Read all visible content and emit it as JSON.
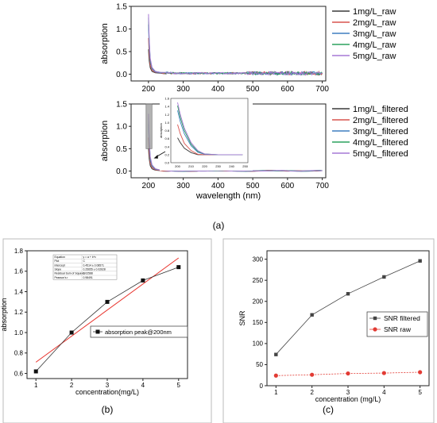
{
  "figure": {
    "label_a": "(a)",
    "label_b": "(b)",
    "label_c": "(c)"
  },
  "colors": {
    "series": [
      "#3a3a3a",
      "#d9534f",
      "#3f7fc0",
      "#2ca25f",
      "#a678d6"
    ],
    "fit_line": "#e8322b",
    "snr_filtered": "#444444",
    "snr_raw": "#e23b34",
    "inset_box": "#9a9a9a"
  },
  "chart_data": [
    {
      "id": "a_top",
      "type": "line",
      "xlabel": "",
      "ylabel": "absorption",
      "xlim": [
        150,
        710
      ],
      "ylim": [
        -0.15,
        1.5
      ],
      "xticks": [
        200,
        300,
        400,
        500,
        600,
        700
      ],
      "yticks": [
        0.0,
        0.5,
        1.0,
        1.5
      ],
      "legend_position": "top-right",
      "x": [
        200,
        202,
        205,
        210,
        220,
        235,
        250,
        280,
        320,
        400,
        480,
        560,
        640,
        700
      ],
      "series": [
        {
          "name": "1mg/L_raw",
          "values": [
            0.55,
            0.3,
            0.14,
            0.06,
            0.03,
            0.02,
            0.02,
            0.02,
            0.02,
            0.02,
            0.02,
            0.02,
            0.02,
            0.02
          ]
        },
        {
          "name": "2mg/L_raw",
          "values": [
            0.8,
            0.45,
            0.2,
            0.09,
            0.04,
            0.03,
            0.02,
            0.02,
            0.02,
            0.02,
            0.02,
            0.02,
            0.02,
            0.02
          ]
        },
        {
          "name": "3mg/L_raw",
          "values": [
            1.1,
            0.62,
            0.28,
            0.12,
            0.05,
            0.03,
            0.03,
            0.02,
            0.02,
            0.02,
            0.02,
            0.02,
            0.02,
            0.02
          ]
        },
        {
          "name": "4mg/L_raw",
          "values": [
            1.25,
            0.72,
            0.32,
            0.14,
            0.06,
            0.04,
            0.03,
            0.02,
            0.02,
            0.02,
            0.02,
            0.02,
            0.02,
            0.02
          ]
        },
        {
          "name": "5mg/L_raw",
          "values": [
            1.33,
            0.78,
            0.35,
            0.15,
            0.06,
            0.04,
            0.03,
            0.02,
            0.02,
            0.02,
            0.02,
            0.02,
            0.02,
            0.02
          ]
        }
      ]
    },
    {
      "id": "a_bottom",
      "type": "line",
      "xlabel": "wavelength (nm)",
      "ylabel": "absorption",
      "xlim": [
        150,
        710
      ],
      "ylim": [
        -0.15,
        1.5
      ],
      "xticks": [
        200,
        300,
        400,
        500,
        600,
        700
      ],
      "yticks": [
        0.0,
        0.5,
        1.0,
        1.5
      ],
      "legend_position": "right",
      "x": [
        200,
        202,
        205,
        210,
        220,
        235,
        250,
        280,
        320,
        400,
        480,
        560,
        640,
        700
      ],
      "series": [
        {
          "name": "1mg/L_filtered",
          "values": [
            0.5,
            0.28,
            0.12,
            0.05,
            0.02,
            0.01,
            0.0,
            0.0,
            0.0,
            0.01,
            0.0,
            0.01,
            0.0,
            0.01
          ]
        },
        {
          "name": "2mg/L_filtered",
          "values": [
            0.75,
            0.42,
            0.18,
            0.08,
            0.03,
            0.01,
            0.0,
            0.0,
            0.0,
            0.01,
            0.0,
            0.01,
            0.0,
            0.01
          ]
        },
        {
          "name": "3mg/L_filtered",
          "values": [
            1.05,
            0.6,
            0.25,
            0.11,
            0.04,
            0.02,
            0.01,
            0.0,
            0.0,
            0.01,
            0.0,
            0.01,
            0.0,
            0.01
          ]
        },
        {
          "name": "4mg/L_filtered",
          "values": [
            1.2,
            0.68,
            0.29,
            0.13,
            0.05,
            0.02,
            0.01,
            0.0,
            0.0,
            0.01,
            0.0,
            0.01,
            0.0,
            0.01
          ]
        },
        {
          "name": "5mg/L_filtered",
          "values": [
            1.28,
            0.74,
            0.32,
            0.14,
            0.05,
            0.02,
            0.01,
            0.0,
            0.0,
            0.01,
            0.0,
            0.01,
            0.0,
            0.01
          ]
        }
      ],
      "zoom_box": {
        "x": [
          193,
          210
        ],
        "y": [
          0.5,
          1.5
        ]
      },
      "inset": {
        "ylabel": "absorption",
        "xlim": [
          195,
          252
        ],
        "ylim": [
          0,
          1.6
        ],
        "xticks": [
          200,
          210,
          220,
          230,
          240,
          250
        ],
        "yticks": [
          0.0,
          0.2,
          0.4,
          0.6,
          0.8,
          1.0,
          1.2,
          1.4,
          1.6
        ],
        "x": [
          200,
          202,
          205,
          210,
          215,
          220,
          230,
          240,
          248
        ],
        "series": [
          {
            "values": [
              0.62,
              0.5,
              0.36,
              0.25,
              0.2,
              0.2,
              0.2,
              0.2,
              0.2
            ]
          },
          {
            "values": [
              0.95,
              0.72,
              0.48,
              0.3,
              0.21,
              0.2,
              0.2,
              0.2,
              0.2
            ]
          },
          {
            "values": [
              1.3,
              1.02,
              0.72,
              0.42,
              0.26,
              0.21,
              0.2,
              0.2,
              0.2
            ]
          },
          {
            "values": [
              1.42,
              1.12,
              0.8,
              0.46,
              0.28,
              0.22,
              0.2,
              0.2,
              0.2
            ]
          },
          {
            "values": [
              1.5,
              1.2,
              0.86,
              0.5,
              0.3,
              0.22,
              0.2,
              0.2,
              0.2
            ]
          }
        ]
      }
    },
    {
      "id": "b",
      "type": "scatter",
      "xlabel": "concentration(mg/L)",
      "ylabel": "absorption",
      "xlim": [
        0.75,
        5.25
      ],
      "ylim": [
        0.55,
        1.8
      ],
      "xticks": [
        1,
        2,
        3,
        4,
        5
      ],
      "yticks": [
        0.6,
        0.8,
        1.0,
        1.2,
        1.4,
        1.6,
        1.8
      ],
      "legend_position": "right",
      "x": [
        1,
        2,
        3,
        4,
        5
      ],
      "series": [
        {
          "name": "absorption peak@200nm",
          "values": [
            0.62,
            1.0,
            1.3,
            1.51,
            1.64
          ]
        }
      ],
      "fit": {
        "x": [
          1,
          5
        ],
        "y": [
          0.71,
          1.73
        ]
      },
      "stats_table": [
        [
          "Equation",
          "y = a + b*x"
        ],
        [
          "Plot",
          "C"
        ],
        [
          "Intercept",
          "0.4514 ± 0.08571"
        ],
        [
          "Slope",
          "0.25655 ± 0.02628"
        ],
        [
          "Residual Sum of Squares",
          "0.02588"
        ],
        [
          "Pearson's r",
          "0.98491"
        ]
      ]
    },
    {
      "id": "c",
      "type": "line",
      "xlabel": "concentration (mg/L)",
      "ylabel": "SNR",
      "xlim": [
        0.75,
        5.25
      ],
      "ylim": [
        0,
        320
      ],
      "xticks": [
        1,
        2,
        3,
        4,
        5
      ],
      "yticks": [
        0,
        50,
        100,
        150,
        200,
        250,
        300
      ],
      "legend_position": "center-right",
      "x": [
        1,
        2,
        3,
        4,
        5
      ],
      "series": [
        {
          "name": "SNR filtered",
          "values": [
            74,
            168,
            218,
            258,
            296
          ]
        },
        {
          "name": "SNR raw",
          "values": [
            24,
            26,
            29,
            30,
            32
          ]
        }
      ]
    }
  ]
}
